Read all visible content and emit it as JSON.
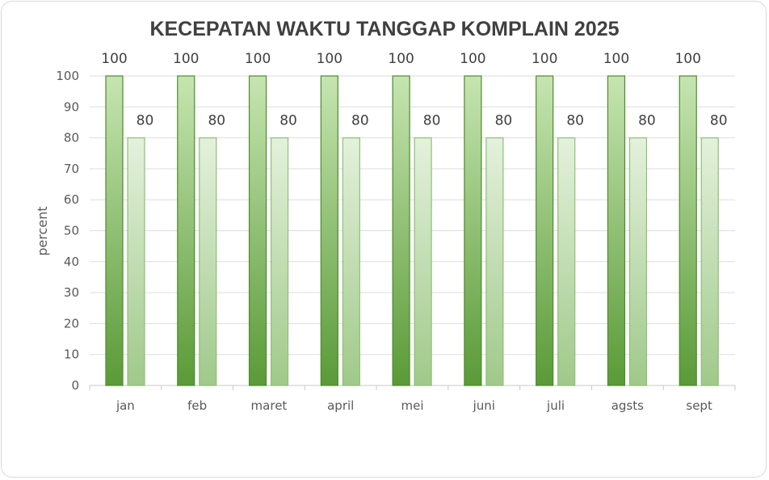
{
  "chart_data": {
    "type": "bar",
    "title": "KECEPATAN WAKTU TANGGAP KOMPLAIN 2025",
    "xlabel": "",
    "ylabel": "percent",
    "ylim": [
      0,
      100
    ],
    "yticks": [
      0,
      10,
      20,
      30,
      40,
      50,
      60,
      70,
      80,
      90,
      100
    ],
    "grid": true,
    "legend": "none",
    "categories": [
      "jan",
      "feb",
      "maret",
      "april",
      "mei",
      "juni",
      "juli",
      "agsts",
      "sept"
    ],
    "series": [
      {
        "values": [
          100,
          100,
          100,
          100,
          100,
          100,
          100,
          100,
          100
        ],
        "color": "#6aa84f"
      },
      {
        "values": [
          80,
          80,
          80,
          80,
          80,
          80,
          80,
          80,
          80
        ],
        "color": "#a9d18e"
      }
    ]
  }
}
